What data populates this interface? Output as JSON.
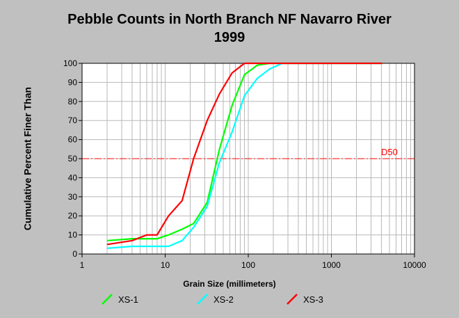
{
  "chart_data": {
    "type": "line",
    "title": "Pebble Counts in North Branch NF Navarro River",
    "subtitle": "1999",
    "xlabel": "Grain Size (millimeters)",
    "ylabel": "Cumulative Percent Finer Than",
    "x_scale": "log",
    "xlim": [
      1,
      10000
    ],
    "ylim": [
      0,
      100
    ],
    "x_ticks": [
      1,
      10,
      100,
      1000,
      10000
    ],
    "x_tick_labels": [
      "1",
      "10",
      "100",
      "1000",
      "10000"
    ],
    "y_ticks": [
      0,
      10,
      20,
      30,
      40,
      50,
      60,
      70,
      80,
      90,
      100
    ],
    "y_tick_labels": [
      "0",
      "10",
      "20",
      "30",
      "40",
      "50",
      "60",
      "70",
      "80",
      "90",
      "100"
    ],
    "grid": true,
    "legend_position": "bottom",
    "reference_line": {
      "label": "D50",
      "y": 50,
      "color": "#ff0000"
    },
    "series": [
      {
        "name": "XS-1",
        "color": "#00ff00",
        "points": [
          [
            2,
            7
          ],
          [
            4,
            8
          ],
          [
            8,
            8
          ],
          [
            11,
            10
          ],
          [
            16,
            13
          ],
          [
            22,
            16
          ],
          [
            32,
            27
          ],
          [
            45,
            55
          ],
          [
            64,
            78
          ],
          [
            90,
            94
          ],
          [
            128,
            99
          ],
          [
            180,
            100
          ],
          [
            256,
            100
          ],
          [
            4096,
            100
          ]
        ]
      },
      {
        "name": "XS-2",
        "color": "#00ffff",
        "points": [
          [
            2,
            3
          ],
          [
            4,
            4
          ],
          [
            8,
            4
          ],
          [
            11,
            4
          ],
          [
            16,
            7
          ],
          [
            22,
            14
          ],
          [
            32,
            25
          ],
          [
            45,
            48
          ],
          [
            64,
            64
          ],
          [
            90,
            83
          ],
          [
            128,
            92
          ],
          [
            180,
            97
          ],
          [
            256,
            100
          ],
          [
            4096,
            100
          ]
        ]
      },
      {
        "name": "XS-3",
        "color": "#ff0000",
        "points": [
          [
            2,
            5
          ],
          [
            4,
            7
          ],
          [
            6,
            10
          ],
          [
            8,
            10
          ],
          [
            11,
            20
          ],
          [
            16,
            28
          ],
          [
            22,
            50
          ],
          [
            32,
            70
          ],
          [
            45,
            84
          ],
          [
            64,
            95
          ],
          [
            90,
            100
          ],
          [
            128,
            100
          ],
          [
            180,
            100
          ],
          [
            256,
            100
          ],
          [
            4096,
            100
          ]
        ]
      }
    ]
  }
}
